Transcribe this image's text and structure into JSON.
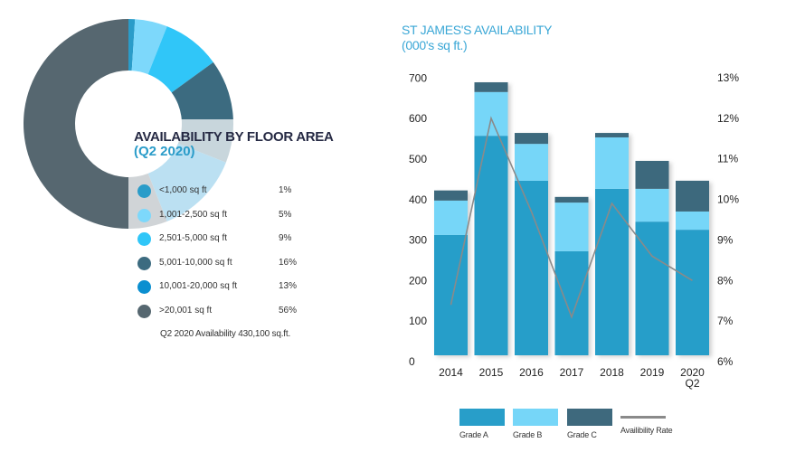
{
  "donut": {
    "title": "AVAILABILITY BY FLOOR AREA",
    "subtitle": "(Q2 2020)",
    "total_note": "Q2 2020 Availability 430,100 sq.ft.",
    "items": [
      {
        "label": "<1,000 sq ft",
        "pct_label": "1%",
        "value": 1,
        "color": "#2a9cc9"
      },
      {
        "label": "1,001-2,500 sq ft",
        "pct_label": "5%",
        "value": 5,
        "color": "#7dd8fb"
      },
      {
        "label": "2,501-5,000 sq ft",
        "pct_label": "9%",
        "value": 9,
        "color": "#30c6f8"
      },
      {
        "label": "5,001-10,000 sq ft",
        "pct_label": "16%",
        "value": 16,
        "color": "#3c6b80"
      },
      {
        "label": "10,001-20,000 sq ft",
        "pct_label": "13%",
        "value": 13,
        "color": "#0b8fd0"
      },
      {
        "label": ">20,001 sq ft",
        "pct_label": "56%",
        "value": 56,
        "color": "#566770"
      }
    ]
  },
  "bar_chart": {
    "title": "ST JAMES'S AVAILABILITY",
    "subtitle": "(000's sq ft.)",
    "legend": {
      "grade_a": "Grade A",
      "grade_b": "Grade B",
      "grade_c": "Grade C",
      "rate": "Availibility Rate"
    }
  },
  "colors": {
    "grade_a": "#289ec9",
    "grade_b": "#76d6f8",
    "grade_c": "#3e697d",
    "rate_line": "#8a8a8a",
    "title_blue": "#3aa7d6"
  },
  "chart_data": [
    {
      "type": "pie",
      "title": "AVAILABILITY BY FLOOR AREA (Q2 2020)",
      "categories": [
        "<1,000 sq ft",
        "1,001-2,500 sq ft",
        "2,501-5,000 sq ft",
        "5,001-10,000 sq ft",
        "10,001-20,000 sq ft",
        ">20,001 sq ft"
      ],
      "values": [
        1,
        5,
        9,
        16,
        13,
        56
      ],
      "unit": "%",
      "annotation": "Q2 2020 Availability 430,100 sq.ft.",
      "legend_position": "right"
    },
    {
      "type": "bar",
      "stacked": true,
      "title": "ST JAMES'S AVAILABILITY (000's sq ft.)",
      "categories": [
        "2014",
        "2015",
        "2016",
        "2017",
        "2018",
        "2019",
        "2020 Q2"
      ],
      "series": [
        {
          "name": "Grade A",
          "values": [
            297,
            542,
            431,
            257,
            411,
            330,
            310
          ]
        },
        {
          "name": "Grade B",
          "values": [
            85,
            108,
            91,
            120,
            127,
            81,
            45
          ]
        },
        {
          "name": "Grade C",
          "values": [
            25,
            24,
            27,
            14,
            11,
            69,
            76
          ]
        },
        {
          "name": "Availibility Rate",
          "type": "line",
          "axis": "right",
          "values": [
            7.4,
            12.0,
            9.7,
            7.1,
            9.9,
            8.6,
            8.0
          ]
        }
      ],
      "xlabel": "",
      "ylabel": "000's sq ft",
      "ylim": [
        0,
        700
      ],
      "yticks": [
        0,
        100,
        200,
        300,
        400,
        500,
        600,
        700
      ],
      "y2lim": [
        6,
        13
      ],
      "y2ticks": [
        "6%",
        "7%",
        "8%",
        "9%",
        "10%",
        "11%",
        "12%",
        "13%"
      ],
      "grid": false,
      "legend_position": "bottom"
    }
  ]
}
